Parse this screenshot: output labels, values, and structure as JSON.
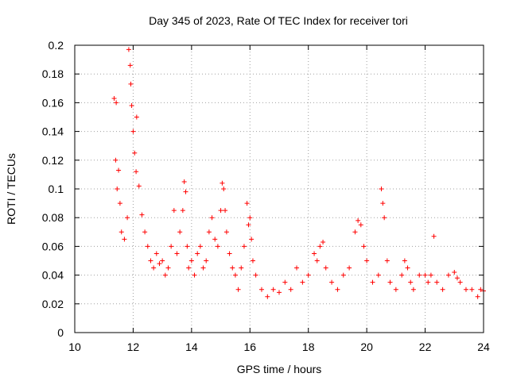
{
  "chart_data": {
    "type": "scatter",
    "title": "Day 345 of 2023, Rate Of TEC Index for receiver tori",
    "xlabel": "GPS time / hours",
    "ylabel": "ROTI / TECUs",
    "xlim": [
      10,
      24
    ],
    "ylim": [
      0,
      0.2
    ],
    "xticks": [
      10,
      12,
      14,
      16,
      18,
      20,
      22,
      24
    ],
    "yticks": [
      0,
      0.02,
      0.04,
      0.06,
      0.08,
      0.1,
      0.12,
      0.14,
      0.16,
      0.18,
      0.2
    ],
    "xtick_labels": [
      "10",
      "12",
      "14",
      "16",
      "18",
      "20",
      "22",
      "24"
    ],
    "ytick_labels": [
      "0",
      "0.02",
      "0.04",
      "0.06",
      "0.08",
      "0.1",
      "0.12",
      "0.14",
      "0.16",
      "0.18",
      "0.2"
    ],
    "grid": true,
    "marker": "+",
    "color": "#ff0000",
    "series": [
      {
        "name": "ROTI",
        "x": [
          11.35,
          11.4,
          11.42,
          11.45,
          11.5,
          11.55,
          11.6,
          11.7,
          11.8,
          11.85,
          11.9,
          11.92,
          11.95,
          12.0,
          12.05,
          12.1,
          12.12,
          12.2,
          12.3,
          12.4,
          12.5,
          12.6,
          12.7,
          12.8,
          12.9,
          13.0,
          13.1,
          13.2,
          13.3,
          13.4,
          13.5,
          13.6,
          13.7,
          13.75,
          13.8,
          13.85,
          13.9,
          14.0,
          14.1,
          14.2,
          14.3,
          14.4,
          14.5,
          14.6,
          14.7,
          14.8,
          14.9,
          15.0,
          15.05,
          15.1,
          15.15,
          15.2,
          15.3,
          15.4,
          15.5,
          15.6,
          15.7,
          15.8,
          15.9,
          15.95,
          16.0,
          16.05,
          16.1,
          16.2,
          16.4,
          16.6,
          16.8,
          17.0,
          17.2,
          17.4,
          17.6,
          17.8,
          18.0,
          18.2,
          18.3,
          18.4,
          18.5,
          18.6,
          18.8,
          19.0,
          19.2,
          19.4,
          19.6,
          19.7,
          19.8,
          19.9,
          20.0,
          20.2,
          20.4,
          20.5,
          20.55,
          20.6,
          20.7,
          20.8,
          21.0,
          21.2,
          21.3,
          21.4,
          21.5,
          21.6,
          21.8,
          22.0,
          22.1,
          22.2,
          22.3,
          22.4,
          22.6,
          22.8,
          23.0,
          23.1,
          23.2,
          23.4,
          23.6,
          23.8,
          23.9,
          24.0
        ],
        "y": [
          0.163,
          0.12,
          0.16,
          0.1,
          0.113,
          0.09,
          0.07,
          0.065,
          0.08,
          0.197,
          0.186,
          0.173,
          0.158,
          0.14,
          0.125,
          0.112,
          0.15,
          0.102,
          0.082,
          0.07,
          0.06,
          0.05,
          0.045,
          0.055,
          0.048,
          0.05,
          0.04,
          0.045,
          0.06,
          0.085,
          0.055,
          0.07,
          0.085,
          0.105,
          0.098,
          0.06,
          0.045,
          0.05,
          0.04,
          0.055,
          0.06,
          0.045,
          0.05,
          0.07,
          0.08,
          0.065,
          0.06,
          0.085,
          0.104,
          0.1,
          0.085,
          0.07,
          0.055,
          0.045,
          0.04,
          0.03,
          0.045,
          0.06,
          0.09,
          0.075,
          0.08,
          0.065,
          0.05,
          0.04,
          0.03,
          0.025,
          0.03,
          0.028,
          0.035,
          0.03,
          0.045,
          0.035,
          0.04,
          0.055,
          0.05,
          0.06,
          0.063,
          0.045,
          0.035,
          0.03,
          0.04,
          0.045,
          0.07,
          0.078,
          0.075,
          0.06,
          0.05,
          0.035,
          0.04,
          0.1,
          0.09,
          0.08,
          0.05,
          0.035,
          0.03,
          0.04,
          0.05,
          0.045,
          0.035,
          0.03,
          0.04,
          0.04,
          0.035,
          0.04,
          0.067,
          0.035,
          0.03,
          0.04,
          0.042,
          0.038,
          0.035,
          0.03,
          0.03,
          0.025,
          0.03,
          0.029
        ]
      }
    ]
  }
}
